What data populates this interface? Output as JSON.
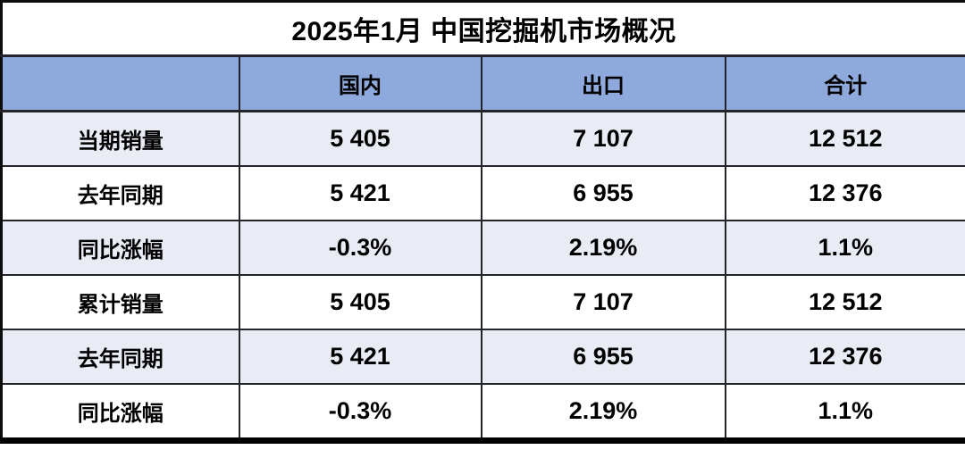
{
  "title": "2025年1月 中国挖掘机市场概况",
  "table": {
    "columns": [
      "",
      "国内",
      "出口",
      "合计"
    ],
    "rows": [
      {
        "label": "当期销量",
        "values": [
          "5 405",
          "7 107",
          "12 512"
        ]
      },
      {
        "label": "去年同期",
        "values": [
          "5 421",
          "6 955",
          "12 376"
        ]
      },
      {
        "label": "同比涨幅",
        "values": [
          "-0.3%",
          "2.19%",
          "1.1%"
        ]
      },
      {
        "label": "累计销量",
        "values": [
          "5 405",
          "7 107",
          "12 512"
        ]
      },
      {
        "label": "去年同期",
        "values": [
          "5 421",
          "6 955",
          "12 376"
        ]
      },
      {
        "label": "同比涨幅",
        "values": [
          "-0.3%",
          "2.19%",
          "1.1%"
        ]
      }
    ]
  },
  "colors": {
    "header_background": "#8EA9DB",
    "banded_row_background": "#E9EBF5",
    "plain_row_background": "#FFFFFF",
    "border": "#24242B",
    "outer_border": "#000000",
    "text": "#000000"
  }
}
